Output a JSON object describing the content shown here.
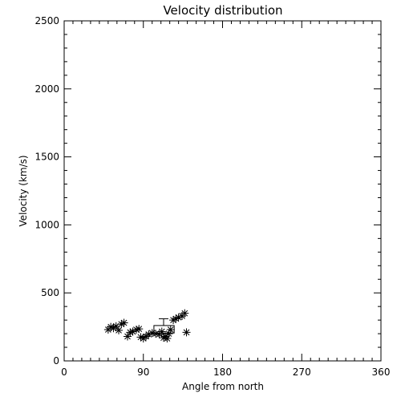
{
  "chart_data": {
    "type": "scatter",
    "title": "Velocity distribution",
    "xlabel": "Angle from north",
    "ylabel": "Velocity (km/s)",
    "xlim": [
      0,
      360
    ],
    "ylim": [
      0,
      2500
    ],
    "xticks": [
      0,
      90,
      180,
      270,
      360
    ],
    "yticks": [
      0,
      500,
      1000,
      1500,
      2000,
      2500
    ],
    "x_minor_step": 10,
    "y_minor_step": 100,
    "grid": false,
    "legend": "none",
    "marker": "asterisk",
    "color": "#000000",
    "series": [
      {
        "values": [
          {
            "x": 50,
            "y": 230
          },
          {
            "x": 53,
            "y": 250
          },
          {
            "x": 56,
            "y": 240
          },
          {
            "x": 59,
            "y": 255
          },
          {
            "x": 62,
            "y": 225
          },
          {
            "x": 65,
            "y": 270
          },
          {
            "x": 68,
            "y": 280
          },
          {
            "x": 72,
            "y": 180
          },
          {
            "x": 75,
            "y": 210
          },
          {
            "x": 78,
            "y": 215
          },
          {
            "x": 82,
            "y": 230
          },
          {
            "x": 85,
            "y": 235
          },
          {
            "x": 87,
            "y": 175
          },
          {
            "x": 90,
            "y": 165
          },
          {
            "x": 93,
            "y": 180
          },
          {
            "x": 96,
            "y": 195
          },
          {
            "x": 100,
            "y": 205
          },
          {
            "x": 104,
            "y": 200
          },
          {
            "x": 108,
            "y": 195
          },
          {
            "x": 111,
            "y": 215
          },
          {
            "x": 113,
            "y": 170
          },
          {
            "x": 115,
            "y": 180
          },
          {
            "x": 117,
            "y": 165
          },
          {
            "x": 119,
            "y": 200
          },
          {
            "x": 121,
            "y": 230
          },
          {
            "x": 124,
            "y": 300
          },
          {
            "x": 127,
            "y": 310
          },
          {
            "x": 130,
            "y": 320
          },
          {
            "x": 134,
            "y": 330
          },
          {
            "x": 137,
            "y": 350
          },
          {
            "x": 139,
            "y": 210
          }
        ]
      }
    ],
    "summary_box": {
      "center_x": 113,
      "x_low": 102,
      "x_high": 125,
      "y_low": 205,
      "y_high": 260,
      "whisker_high": 310
    }
  }
}
